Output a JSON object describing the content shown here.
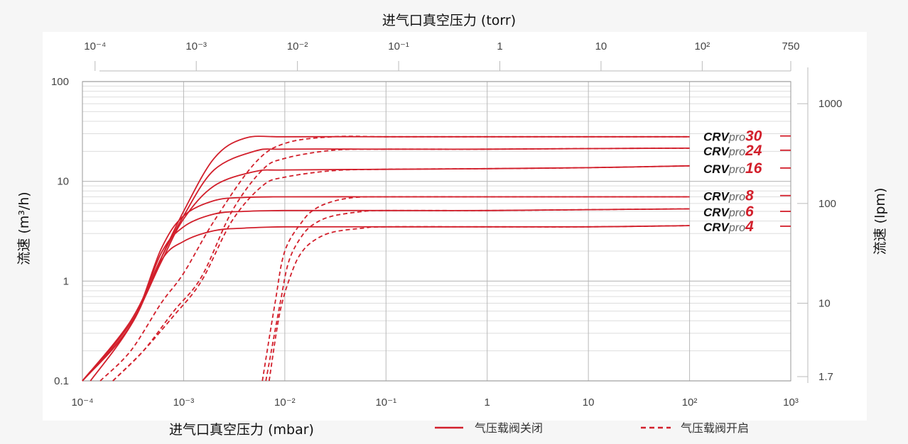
{
  "chart_data": {
    "type": "line",
    "x_scale": "log",
    "y_scale": "log",
    "bottom_axis": {
      "title": "进气口真空压力 (mbar)",
      "unit": "mbar",
      "range": [
        0.0001,
        1000
      ],
      "ticks": [
        {
          "value": 0.0001,
          "label": "10⁻⁴"
        },
        {
          "value": 0.001,
          "label": "10⁻³"
        },
        {
          "value": 0.01,
          "label": "10⁻²"
        },
        {
          "value": 0.1,
          "label": "10⁻¹"
        },
        {
          "value": 1,
          "label": "1"
        },
        {
          "value": 10,
          "label": "10"
        },
        {
          "value": 100,
          "label": "10²"
        },
        {
          "value": 1000,
          "label": "10³"
        }
      ]
    },
    "top_axis": {
      "title": "进气口真空压力 (torr)",
      "unit": "torr",
      "range": [
        7.5e-05,
        750
      ],
      "ticks": [
        {
          "value": 0.0001,
          "label": "10⁻⁴"
        },
        {
          "value": 0.001,
          "label": "10⁻³"
        },
        {
          "value": 0.01,
          "label": "10⁻²"
        },
        {
          "value": 0.1,
          "label": "10⁻¹"
        },
        {
          "value": 1,
          "label": "1"
        },
        {
          "value": 10,
          "label": "10"
        },
        {
          "value": 100,
          "label": "10²"
        },
        {
          "value": 750,
          "label": "750"
        }
      ]
    },
    "left_axis": {
      "title": "流速 (m³/h)",
      "unit": "m³/h",
      "range": [
        0.1,
        100
      ],
      "ticks": [
        {
          "value": 0.1,
          "label": "0.1"
        },
        {
          "value": 1,
          "label": "1"
        },
        {
          "value": 10,
          "label": "10"
        },
        {
          "value": 100,
          "label": "100"
        }
      ]
    },
    "right_axis": {
      "title": "流速 (lpm)",
      "unit": "lpm",
      "ticks": [
        {
          "value": 1.7,
          "label": "1.7"
        },
        {
          "value": 10,
          "label": "10"
        },
        {
          "value": 100,
          "label": "100"
        },
        {
          "value": 1000,
          "label": "1000"
        }
      ]
    },
    "grid": true,
    "legend": {
      "position": "bottom",
      "entries": [
        {
          "label": "气压载阀关闭",
          "style": "solid"
        },
        {
          "label": "气压载阀开启",
          "style": "dashed"
        }
      ]
    },
    "series": [
      {
        "model": "30",
        "style": "solid",
        "x": [
          0.00012,
          0.0003,
          0.0006,
          0.001,
          0.002,
          0.004,
          0.01,
          0.1,
          1,
          10,
          100
        ],
        "y": [
          0.1,
          0.36,
          1.7,
          5.0,
          17,
          27,
          28,
          28,
          28,
          28,
          28
        ]
      },
      {
        "model": "24",
        "style": "solid",
        "x": [
          0.0001,
          0.0003,
          0.0006,
          0.001,
          0.002,
          0.005,
          0.01,
          0.1,
          1,
          10,
          100
        ],
        "y": [
          0.1,
          0.4,
          1.7,
          4.5,
          13,
          20,
          21,
          21,
          21,
          21.3,
          21.5
        ]
      },
      {
        "model": "16",
        "style": "solid",
        "x": [
          0.0001,
          0.0003,
          0.0006,
          0.001,
          0.002,
          0.005,
          0.01,
          0.1,
          1,
          10,
          100
        ],
        "y": [
          0.1,
          0.38,
          1.55,
          4.2,
          9,
          12.5,
          13,
          13.2,
          13.4,
          13.7,
          14.3
        ]
      },
      {
        "model": "8",
        "style": "solid",
        "x": [
          0.0001,
          0.0003,
          0.0006,
          0.001,
          0.002,
          0.004,
          0.01,
          0.1,
          1,
          10,
          100
        ],
        "y": [
          0.1,
          0.36,
          2.1,
          4.5,
          6.4,
          6.9,
          7.0,
          7.0,
          7.0,
          7.0,
          7.0
        ]
      },
      {
        "model": "6",
        "style": "solid",
        "x": [
          0.0001,
          0.0003,
          0.0006,
          0.001,
          0.002,
          0.004,
          0.01,
          0.1,
          1,
          10,
          100
        ],
        "y": [
          0.1,
          0.36,
          1.9,
          3.5,
          4.7,
          5.0,
          5.1,
          5.1,
          5.1,
          5.2,
          5.3
        ]
      },
      {
        "model": "4",
        "style": "solid",
        "x": [
          0.0001,
          0.0003,
          0.0006,
          0.001,
          0.002,
          0.004,
          0.01,
          0.1,
          1,
          10,
          100
        ],
        "y": [
          0.1,
          0.36,
          1.6,
          2.5,
          3.2,
          3.4,
          3.5,
          3.5,
          3.5,
          3.5,
          3.6
        ]
      },
      {
        "model": "30",
        "style": "dashed",
        "x": [
          0.00015,
          0.0003,
          0.0006,
          0.001,
          0.002,
          0.005,
          0.01,
          0.03,
          0.1,
          1,
          10,
          100
        ],
        "y": [
          0.1,
          0.2,
          0.6,
          1.2,
          4.0,
          15,
          24,
          28,
          28,
          28,
          28,
          28
        ]
      },
      {
        "model": "24",
        "style": "dashed",
        "x": [
          0.0002,
          0.0004,
          0.0008,
          0.0015,
          0.003,
          0.006,
          0.01,
          0.03,
          0.1,
          1,
          10,
          100
        ],
        "y": [
          0.1,
          0.2,
          0.5,
          1.1,
          5.0,
          13,
          17,
          20.5,
          21,
          21,
          21.3,
          21.5
        ]
      },
      {
        "model": "16",
        "style": "dashed",
        "x": [
          0.0002,
          0.0004,
          0.0008,
          0.0015,
          0.003,
          0.006,
          0.01,
          0.03,
          0.1,
          1,
          10,
          100
        ],
        "y": [
          0.1,
          0.2,
          0.45,
          1.0,
          4.0,
          9.0,
          11,
          12.8,
          13.2,
          13.4,
          13.7,
          14.3
        ]
      },
      {
        "model": "8",
        "style": "dashed",
        "x": [
          0.006,
          0.008,
          0.01,
          0.015,
          0.02,
          0.03,
          0.05,
          0.1,
          1,
          10,
          100
        ],
        "y": [
          0.1,
          0.6,
          2.0,
          4.0,
          5.3,
          6.3,
          6.9,
          7.0,
          7.0,
          7.0,
          7.0
        ]
      },
      {
        "model": "6",
        "style": "dashed",
        "x": [
          0.0065,
          0.009,
          0.011,
          0.015,
          0.02,
          0.03,
          0.06,
          0.1,
          1,
          10,
          100
        ],
        "y": [
          0.1,
          0.6,
          1.6,
          2.9,
          3.8,
          4.5,
          5.0,
          5.1,
          5.1,
          5.2,
          5.3
        ]
      },
      {
        "model": "4",
        "style": "dashed",
        "x": [
          0.007,
          0.009,
          0.012,
          0.015,
          0.02,
          0.03,
          0.06,
          0.1,
          1,
          10,
          100
        ],
        "y": [
          0.1,
          0.5,
          1.3,
          2.0,
          2.6,
          3.1,
          3.4,
          3.5,
          3.5,
          3.5,
          3.6
        ]
      }
    ],
    "model_labels": [
      {
        "model": "30",
        "y": 28.5,
        "prefix": "CRV",
        "suffix": "pro",
        "number": "30"
      },
      {
        "model": "24",
        "y": 20.5,
        "prefix": "CRV",
        "suffix": "pro",
        "number": "24"
      },
      {
        "model": "16",
        "y": 13.6,
        "prefix": "CRV",
        "suffix": "pro",
        "number": "16"
      },
      {
        "model": "8",
        "y": 7.2,
        "prefix": "CRV",
        "suffix": "pro",
        "number": "8"
      },
      {
        "model": "6",
        "y": 5.0,
        "prefix": "CRV",
        "suffix": "pro",
        "number": "6"
      },
      {
        "model": "4",
        "y": 3.55,
        "prefix": "CRV",
        "suffix": "pro",
        "number": "4"
      }
    ]
  },
  "colors": {
    "curve": "#d21f2b",
    "grid_major": "#b9b9b9",
    "grid_minor": "#dddddd",
    "label_number": "#d21f2b",
    "label_prefix": "#111111",
    "label_suffix": "#666666"
  }
}
